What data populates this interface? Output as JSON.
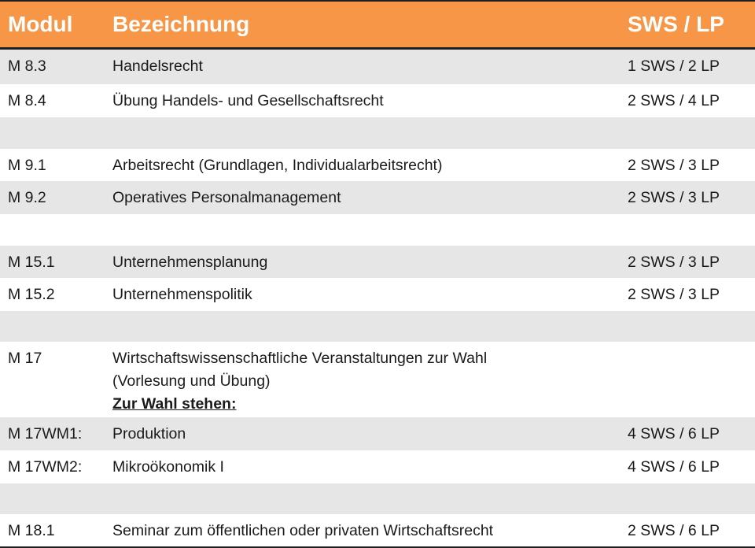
{
  "header": {
    "modul": "Modul",
    "bezeichnung": "Bezeichnung",
    "sws_lp": "SWS / LP"
  },
  "rows": [
    {
      "modul": "M 8.3",
      "bezeichnung": "Handelsrecht",
      "sws_lp": "1 SWS / 2 LP"
    },
    {
      "modul": "M 8.4",
      "bezeichnung": "Übung Handels- und Gesellschaftsrecht",
      "sws_lp": "2 SWS / 4 LP"
    },
    {
      "modul": "",
      "bezeichnung": "",
      "sws_lp": ""
    },
    {
      "modul": "M 9.1",
      "bezeichnung": "Arbeitsrecht (Grundlagen, Individualarbeitsrecht)",
      "sws_lp": "2 SWS / 3 LP"
    },
    {
      "modul": "M 9.2",
      "bezeichnung": "Operatives Personalmanagement",
      "sws_lp": "2 SWS / 3 LP"
    },
    {
      "modul": "",
      "bezeichnung": "",
      "sws_lp": ""
    },
    {
      "modul": "M 15.1",
      "bezeichnung": "Unternehmensplanung",
      "sws_lp": "2 SWS / 3 LP"
    },
    {
      "modul": "M 15.2",
      "bezeichnung": "Unternehmenspolitik",
      "sws_lp": "2 SWS / 3 LP"
    },
    {
      "modul": "",
      "bezeichnung": "",
      "sws_lp": ""
    },
    {
      "modul": "M 17",
      "bezeichnung_lines": [
        "Wirtschaftswissenschaftliche Veranstaltungen zur Wahl",
        "(Vorlesung und Übung)"
      ],
      "note": "Zur Wahl stehen:",
      "sws_lp": ""
    },
    {
      "modul": "M 17WM1:",
      "bezeichnung": "Produktion",
      "sws_lp": "4 SWS / 6 LP"
    },
    {
      "modul": "M 17WM2:",
      "bezeichnung": "Mikroökonomik I",
      "sws_lp": "4 SWS / 6 LP"
    },
    {
      "modul": "",
      "bezeichnung": "",
      "sws_lp": ""
    },
    {
      "modul": "M 18.1",
      "bezeichnung": "Seminar zum öffentlichen oder privaten Wirtschaftsrecht",
      "sws_lp": "2 SWS / 6 LP"
    }
  ]
}
